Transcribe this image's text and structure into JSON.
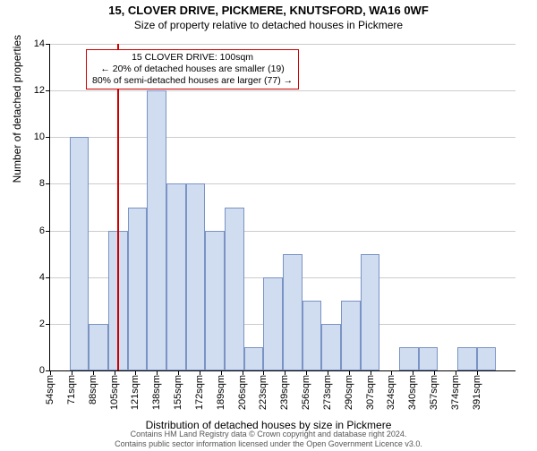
{
  "title": "15, CLOVER DRIVE, PICKMERE, KNUTSFORD, WA16 0WF",
  "subtitle": "Size of property relative to detached houses in Pickmere",
  "y_axis_label": "Number of detached properties",
  "x_axis_label": "Distribution of detached houses by size in Pickmere",
  "footer_line1": "Contains HM Land Registry data © Crown copyright and database right 2024.",
  "footer_line2": "Contains public sector information licensed under the Open Government Licence v3.0.",
  "callout": {
    "line1": "15 CLOVER DRIVE: 100sqm",
    "line2": "← 20% of detached houses are smaller (19)",
    "line3": "80% of semi-detached houses are larger (77) →"
  },
  "chart": {
    "type": "histogram",
    "y_max": 14,
    "y_ticks": [
      0,
      2,
      4,
      6,
      8,
      10,
      12,
      14
    ],
    "x_tick_labels": [
      "54sqm",
      "71sqm",
      "88sqm",
      "105sqm",
      "121sqm",
      "138sqm",
      "155sqm",
      "172sqm",
      "189sqm",
      "206sqm",
      "223sqm",
      "239sqm",
      "256sqm",
      "273sqm",
      "290sqm",
      "307sqm",
      "324sqm",
      "340sqm",
      "357sqm",
      "374sqm",
      "391sqm"
    ],
    "bars": [
      0,
      10,
      2,
      6,
      7,
      12,
      8,
      8,
      6,
      7,
      1,
      4,
      5,
      3,
      2,
      3,
      5,
      0,
      1,
      1,
      0,
      1,
      1
    ],
    "bar_x_start": 48,
    "bar_x_end": 394,
    "vline_at": 100,
    "bar_fill": "#d0dcf0",
    "bar_stroke": "#7a93c4",
    "grid_color": "#cccccc",
    "background": "#ffffff",
    "title_fontsize": 13,
    "subtitle_fontsize": 12,
    "label_fontsize": 12,
    "tick_fontsize": 11,
    "footer_fontsize": 9,
    "callout_fontsize": 10.5,
    "callout_border": "#cc0000"
  }
}
